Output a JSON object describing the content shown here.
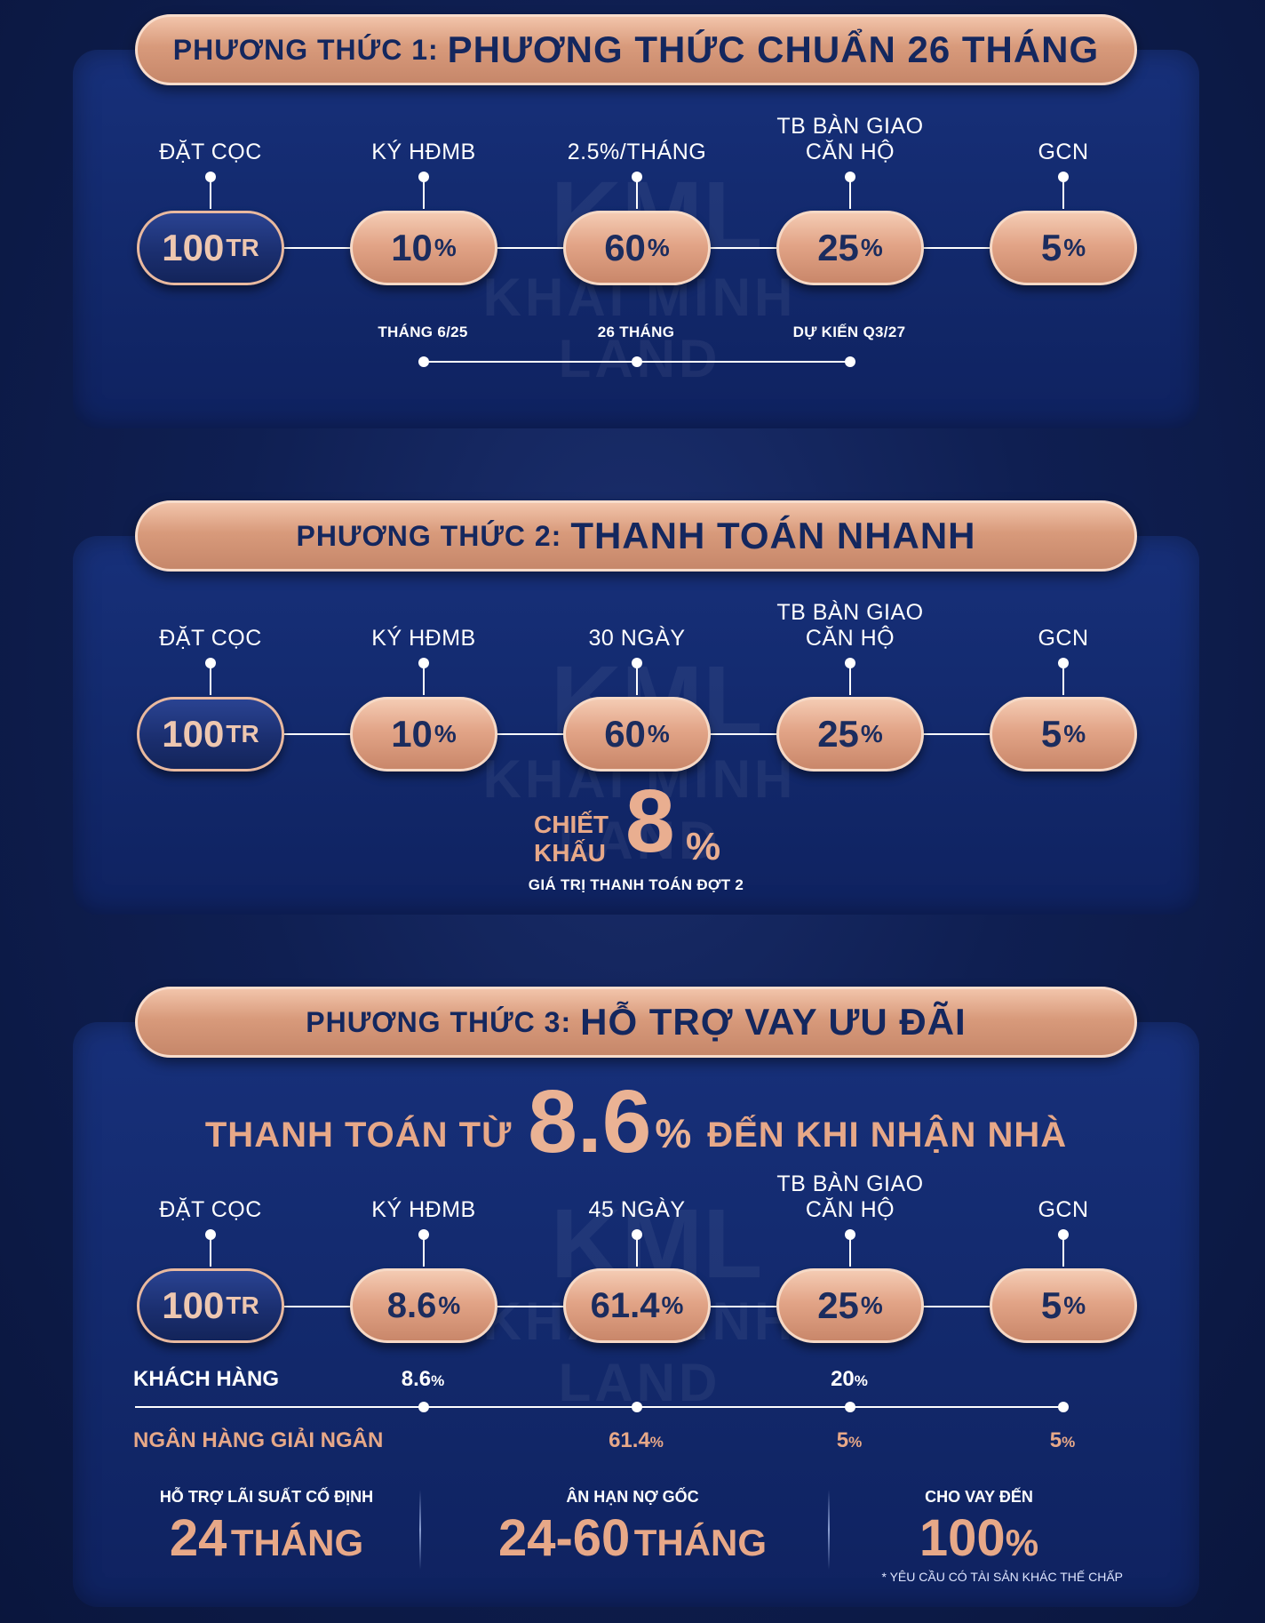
{
  "watermark": {
    "mark": "KML",
    "text": "KHAI MINH LAND"
  },
  "stages_common": {
    "deposit": "ĐẶT CỌC",
    "contract": "KÝ HĐMB",
    "handover_line1": "TB BÀN GIAO",
    "handover_line2": "CĂN HỘ",
    "gcn": "GCN",
    "deposit_amount": "100",
    "deposit_unit": "TR"
  },
  "plan1": {
    "title_prefix": "PHƯƠNG THỨC 1:",
    "title_main": "PHƯƠNG THỨC CHUẨN 26 THÁNG",
    "middle_label": "2.5%/THÁNG",
    "values": [
      {
        "num": "10",
        "unit": "%"
      },
      {
        "num": "60",
        "unit": "%"
      },
      {
        "num": "25",
        "unit": "%"
      },
      {
        "num": "5",
        "unit": "%"
      }
    ],
    "timeline": [
      "THÁNG 6/25",
      "26 THÁNG",
      "DỰ KIẾN Q3/27"
    ]
  },
  "plan2": {
    "title_prefix": "PHƯƠNG THỨC 2:",
    "title_main": "THANH TOÁN NHANH",
    "middle_label": "30 NGÀY",
    "values": [
      {
        "num": "10",
        "unit": "%"
      },
      {
        "num": "60",
        "unit": "%"
      },
      {
        "num": "25",
        "unit": "%"
      },
      {
        "num": "5",
        "unit": "%"
      }
    ],
    "discount_word1": "CHIẾT",
    "discount_word2": "KHẤU",
    "discount_value": "8",
    "discount_unit": "%",
    "discount_note": "GIÁ TRỊ THANH TOÁN ĐỢT 2"
  },
  "plan3": {
    "title_prefix": "PHƯƠNG THỨC 3:",
    "title_main": "HỖ TRỢ VAY ƯU ĐÃI",
    "headline_pre": "THANH TOÁN TỪ",
    "headline_value": "8.6",
    "headline_unit": "%",
    "headline_post": "ĐẾN KHI NHẬN NHÀ",
    "middle_label": "45 NGÀY",
    "values": [
      {
        "num": "8.6",
        "unit": "%"
      },
      {
        "num": "61.4",
        "unit": "%"
      },
      {
        "num": "25",
        "unit": "%"
      },
      {
        "num": "5",
        "unit": "%"
      }
    ],
    "customer_label": "KHÁCH HÀNG",
    "customer_values": [
      {
        "num": "8.6",
        "unit": "%"
      },
      {
        "num": "20",
        "unit": "%"
      }
    ],
    "bank_label": "NGÂN HÀNG GIẢI NGÂN",
    "bank_values": [
      {
        "num": "61.4",
        "unit": "%"
      },
      {
        "num": "5",
        "unit": "%"
      },
      {
        "num": "5",
        "unit": "%"
      }
    ],
    "benefits": [
      {
        "caption": "HỖ TRỢ LÃI SUẤT CỐ ĐỊNH",
        "big": "24",
        "unit": "THÁNG"
      },
      {
        "caption": "ÂN HẠN NỢ GỐC",
        "big": "24-60",
        "unit": "THÁNG"
      },
      {
        "caption": "CHO VAY ĐẾN",
        "big": "100",
        "unit": "%"
      }
    ],
    "footnote": "* YÊU CẦU CÓ TÀI SẢN KHÁC THẾ CHẤP"
  },
  "colors": {
    "navy": "#12286a",
    "copper": "#d99a7b",
    "text_dark": "#14275e"
  }
}
